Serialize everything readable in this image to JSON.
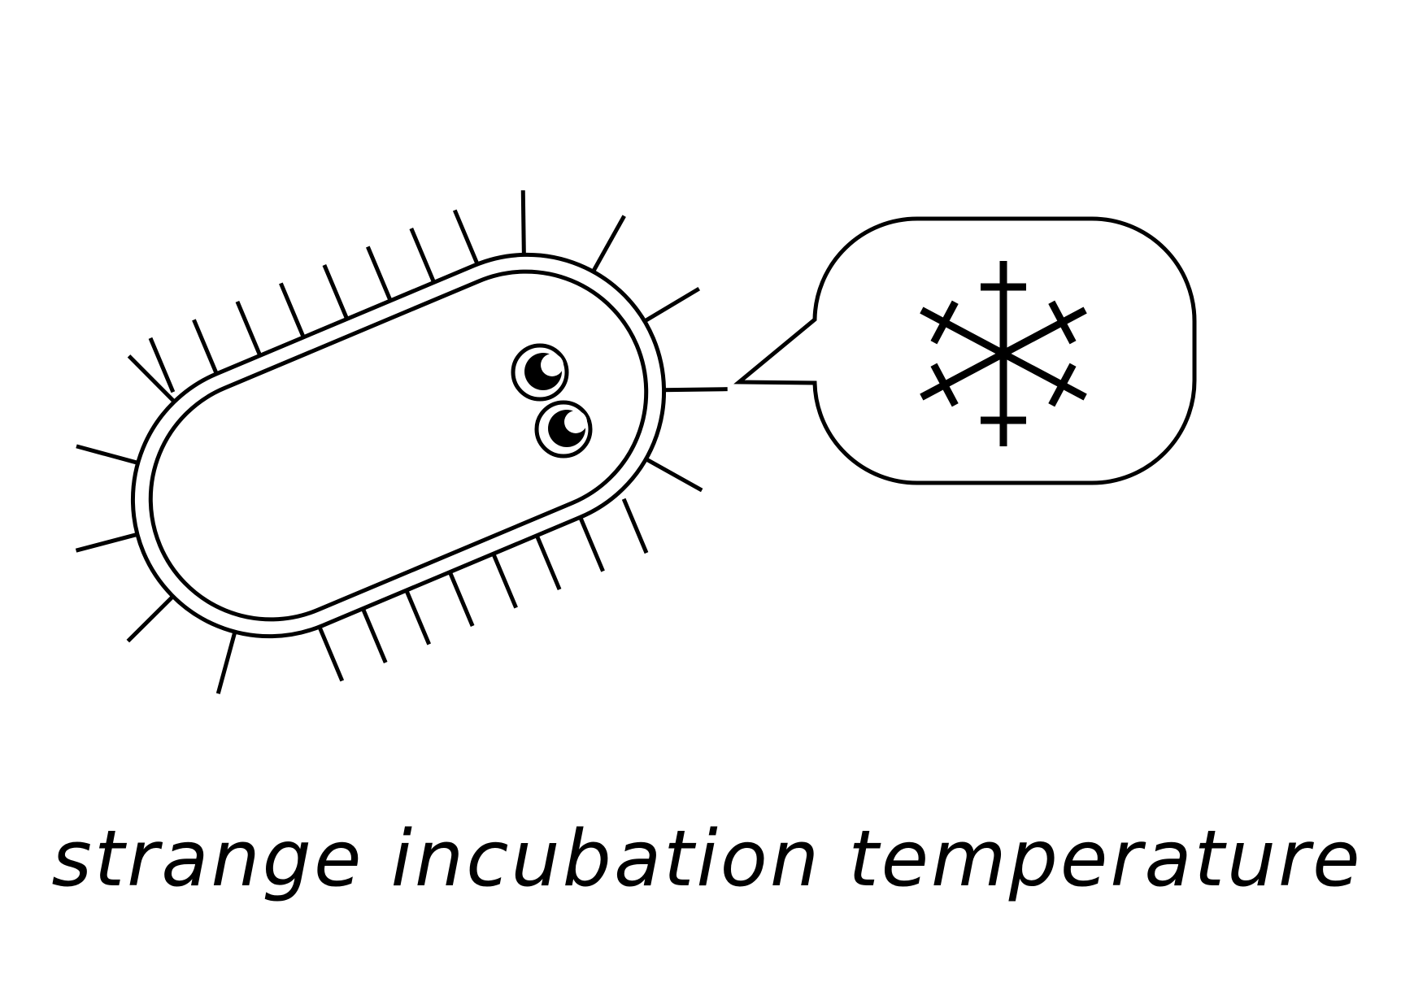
{
  "caption": {
    "text": "strange incubation temperature"
  },
  "illustration": {
    "subject_icon": "bacterium-icon",
    "eye_icon": "eye-icon",
    "bubble_icon": "speech-bubble-icon",
    "symbol_icon": "snowflake-icon",
    "stroke_color": "#000000",
    "fill_color": "#ffffff"
  }
}
